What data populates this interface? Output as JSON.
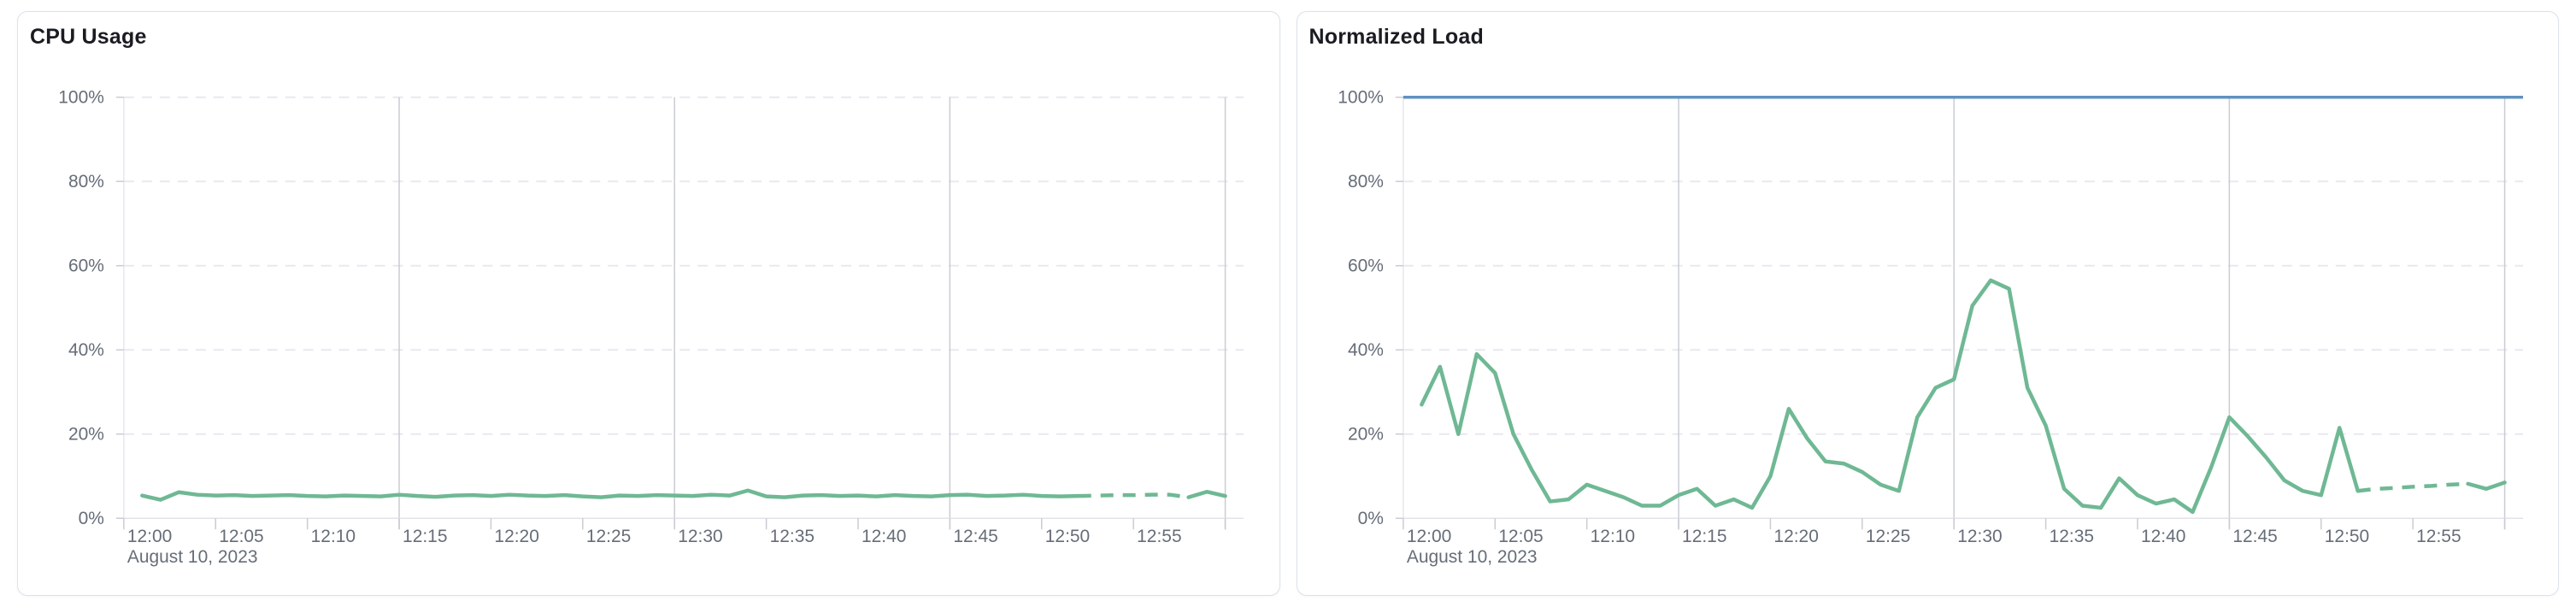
{
  "page": {
    "background_color": "#ffffff"
  },
  "cards": [
    {
      "title": "CPU Usage"
    },
    {
      "title": "Normalized Load"
    }
  ],
  "chart_data": [
    {
      "type": "line",
      "title": "CPU Usage",
      "xlabel": "",
      "ylabel": "",
      "x_axis_secondary_label": "August 10, 2023",
      "x_tick_labels": [
        "12:00",
        "12:05",
        "12:10",
        "12:15",
        "12:20",
        "12:25",
        "12:30",
        "12:35",
        "12:40",
        "12:45",
        "12:50",
        "12:55"
      ],
      "y_tick_labels": [
        "0%",
        "20%",
        "40%",
        "60%",
        "80%",
        "100%"
      ],
      "ylim": [
        0,
        100
      ],
      "x_domain_minutes_after_1200": [
        0,
        61
      ],
      "solid_vertical_gridline_minutes": [
        15,
        30,
        45,
        60
      ],
      "grid": true,
      "legend_position": "none",
      "colors": {
        "line_green": "#6fb894"
      },
      "series": [
        {
          "name": "CPU Usage",
          "color": "#6fb894",
          "x_start_minute": 1,
          "x_step_minutes": 1,
          "values": [
            5.4,
            4.4,
            6.2,
            5.6,
            5.4,
            5.5,
            5.3,
            5.4,
            5.5,
            5.3,
            5.2,
            5.4,
            5.3,
            5.2,
            5.6,
            5.3,
            5.1,
            5.4,
            5.5,
            5.3,
            5.6,
            5.4,
            5.3,
            5.5,
            5.2,
            5.0,
            5.4,
            5.3,
            5.5,
            5.4,
            5.3,
            5.6,
            5.4,
            6.6,
            5.2,
            5.0,
            5.4,
            5.5,
            5.3,
            5.4,
            5.2,
            5.5,
            5.3,
            5.2,
            5.5,
            5.6,
            5.3,
            5.4,
            5.6,
            5.3,
            5.2,
            5.3,
            5.4,
            5.5,
            5.5,
            5.6,
            5.6,
            5.0,
            6.3,
            5.3
          ],
          "dashed_from_minute": 52,
          "dashed_to_minute": 58
        }
      ]
    },
    {
      "type": "line",
      "title": "Normalized Load",
      "xlabel": "",
      "ylabel": "",
      "x_axis_secondary_label": "August 10, 2023",
      "x_tick_labels": [
        "12:00",
        "12:05",
        "12:10",
        "12:15",
        "12:20",
        "12:25",
        "12:30",
        "12:35",
        "12:40",
        "12:45",
        "12:50",
        "12:55"
      ],
      "y_tick_labels": [
        "0%",
        "20%",
        "40%",
        "60%",
        "80%",
        "100%"
      ],
      "ylim": [
        0,
        100
      ],
      "x_domain_minutes_after_1200": [
        0,
        61
      ],
      "solid_vertical_gridline_minutes": [
        15,
        30,
        45,
        60
      ],
      "grid": true,
      "legend_position": "none",
      "colors": {
        "line_green": "#6fb894",
        "line_blue": "#6092c0"
      },
      "series": [
        {
          "name": "100% reference",
          "color": "#6092c0",
          "constant": 100
        },
        {
          "name": "Normalized Load",
          "color": "#6fb894",
          "x_start_minute": 1,
          "x_step_minutes": 1,
          "values": [
            27,
            36,
            20,
            39,
            34.5,
            20,
            11.5,
            4,
            4.5,
            8,
            6.5,
            5,
            3,
            3,
            5.5,
            7,
            3,
            4.5,
            2.5,
            10,
            26,
            19,
            13.5,
            13,
            11,
            8,
            6.5,
            24,
            31,
            33,
            50.5,
            56.5,
            54.5,
            31,
            22,
            7,
            3,
            2.5,
            9.5,
            5.5,
            3.5,
            4.5,
            1.5,
            12,
            24,
            19.5,
            14.5,
            9,
            6.5,
            5.5,
            21.5,
            6.5,
            7,
            7.2,
            7.5,
            7.7,
            8,
            8.2,
            7,
            8.5
          ],
          "dashed_from_minute": 52,
          "dashed_to_minute": 58
        }
      ]
    }
  ]
}
